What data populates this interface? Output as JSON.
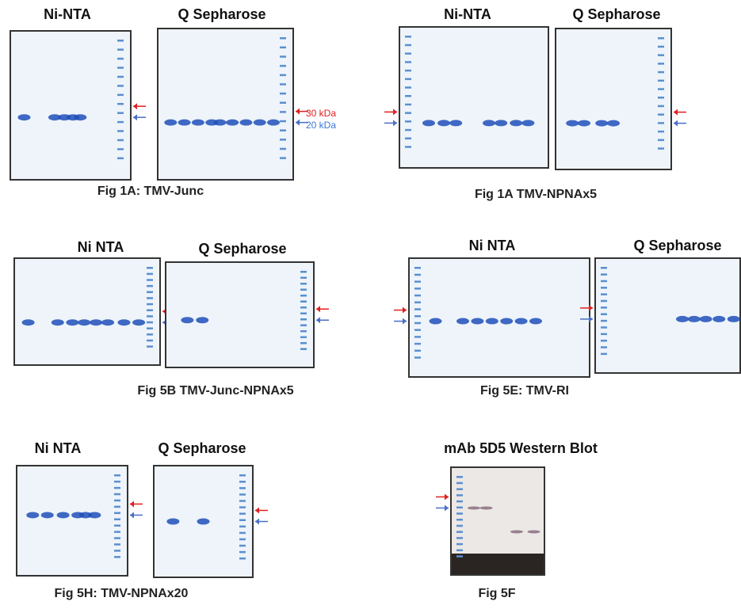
{
  "panels": [
    {
      "gels": [
        {
          "title": "Ni-NTA"
        },
        {
          "title": "Q Sepharose"
        }
      ],
      "caption": "Fig 1A: TMV-Junc",
      "markers": [
        "30 kDa",
        "20 kDa"
      ]
    },
    {
      "gels": [
        {
          "title": "Ni-NTA"
        },
        {
          "title": "Q Sepharose"
        }
      ],
      "caption": "Fig 1A TMV-NPNAx5"
    },
    {
      "gels": [
        {
          "title": "Ni NTA"
        },
        {
          "title": "Q Sepharose"
        }
      ],
      "caption": "Fig 5B TMV-Junc-NPNAx5"
    },
    {
      "gels": [
        {
          "title": "Ni NTA"
        },
        {
          "title": "Q Sepharose"
        }
      ],
      "caption": "Fig 5E: TMV-RI"
    },
    {
      "gels": [
        {
          "title": "Ni NTA"
        },
        {
          "title": "Q Sepharose"
        }
      ],
      "caption": "Fig 5H: TMV-NPNAx20"
    },
    {
      "gels": [
        {
          "title": "mAb 5D5 Western Blot"
        }
      ],
      "caption": "Fig 5F"
    }
  ]
}
